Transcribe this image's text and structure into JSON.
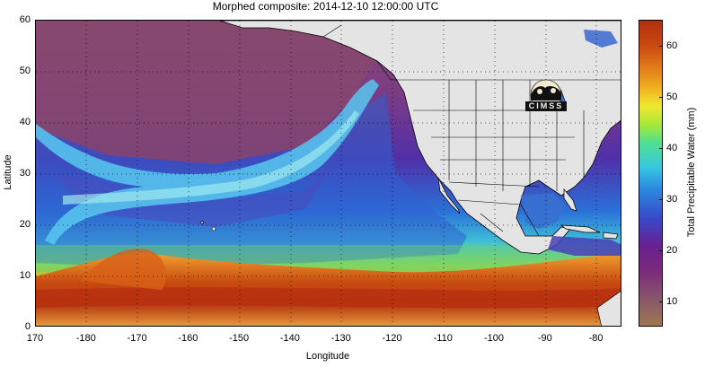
{
  "title": "Morphed composite: 2014-12-10 12:00:00 UTC",
  "xlabel": "Longitude",
  "ylabel": "Latitude",
  "colorbar_label": "Total Precipitable Water (mm)",
  "logo_text": "CIMSS",
  "x_ticks": [
    "170",
    "-180",
    "-170",
    "-160",
    "-150",
    "-140",
    "-130",
    "-120",
    "-110",
    "-100",
    "-90",
    "-80"
  ],
  "y_ticks": [
    "0",
    "10",
    "20",
    "30",
    "40",
    "50",
    "60"
  ],
  "colorbar_ticks": [
    "10",
    "20",
    "30",
    "40",
    "50",
    "60"
  ],
  "colorbar_range": [
    5,
    65
  ],
  "x_range": [
    170,
    285
  ],
  "y_range": [
    0,
    60
  ],
  "grid": "dotted",
  "colors": {
    "land": "#e6e6e6",
    "dry": "#8a4a78",
    "moist_blue": "#3060d8",
    "plume": "#58c8f0",
    "tropical_orange": "#e07818"
  }
}
